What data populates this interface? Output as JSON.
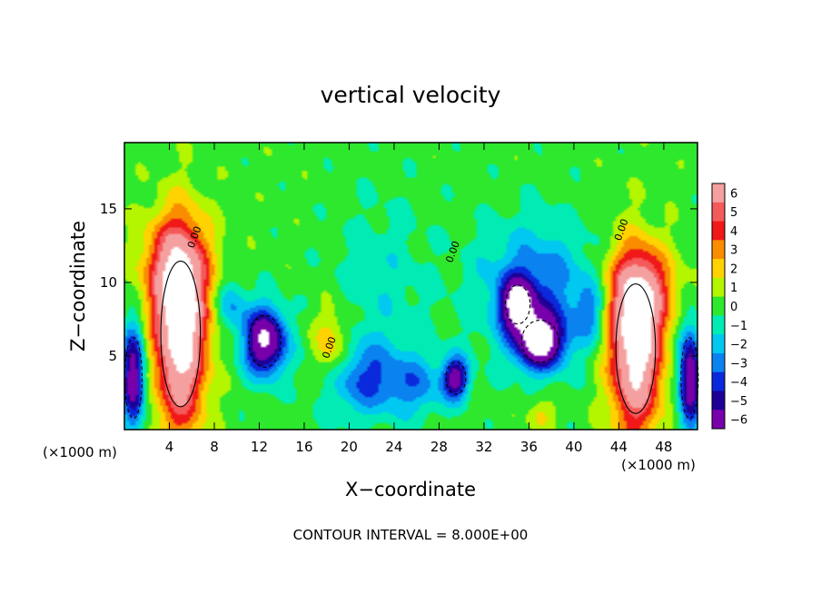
{
  "chart_data": {
    "type": "heatmap",
    "title": "vertical velocity",
    "xlabel": "X−coordinate",
    "ylabel": "Z−coordinate",
    "x_unit_left": "(×1000 m)",
    "x_unit_right": "(×1000 m)",
    "footer": "CONTOUR INTERVAL = 8.000E+00",
    "contour_label": "0.00",
    "xlim": [
      0,
      51
    ],
    "ylim": [
      0,
      19.5
    ],
    "x_ticks": [
      4,
      8,
      12,
      16,
      20,
      24,
      28,
      32,
      36,
      40,
      44,
      48
    ],
    "x_tick_labels": [
      "4",
      "8",
      "12",
      "16",
      "20",
      "24",
      "28",
      "32",
      "36",
      "40",
      "44",
      "48"
    ],
    "y_ticks": [
      5,
      10,
      15
    ],
    "y_tick_labels": [
      "5",
      "10",
      "15"
    ],
    "colorbar": {
      "range": [
        -6,
        6
      ],
      "levels": [
        6,
        5,
        4,
        3,
        2,
        1,
        0,
        -1,
        -2,
        -3,
        -4,
        -5,
        -6
      ],
      "tick_labels": [
        "6",
        "5",
        "4",
        "3",
        "2",
        "1",
        "0",
        "−1",
        "−2",
        "−3",
        "−4",
        "−5",
        "−6"
      ]
    },
    "features": [
      {
        "kind": "updraft",
        "x": 5,
        "z": 6.5,
        "sx": 1.6,
        "sz": 4.5,
        "amp": 9
      },
      {
        "kind": "updraft",
        "x": 45.5,
        "z": 5.5,
        "sx": 1.6,
        "sz": 4.0,
        "amp": 9
      },
      {
        "kind": "updraft",
        "x": 4.5,
        "z": 11,
        "sx": 2.2,
        "sz": 2.5,
        "amp": 4
      },
      {
        "kind": "updraft",
        "x": 46,
        "z": 9.5,
        "sx": 2.2,
        "sz": 2.0,
        "amp": 4
      },
      {
        "kind": "updraft",
        "x": 18.5,
        "z": 5.5,
        "sx": 1.2,
        "sz": 1.8,
        "amp": 3
      },
      {
        "kind": "updraft",
        "x": 37,
        "z": 1.0,
        "sx": 0.8,
        "sz": 0.8,
        "amp": 2
      },
      {
        "kind": "downdraft",
        "x": 12.5,
        "z": 6.0,
        "sx": 1.3,
        "sz": 1.6,
        "amp": -8
      },
      {
        "kind": "downdraft",
        "x": 37,
        "z": 6.0,
        "sx": 1.5,
        "sz": 1.3,
        "amp": -8
      },
      {
        "kind": "downdraft",
        "x": 35,
        "z": 8.5,
        "sx": 1.0,
        "sz": 1.2,
        "amp": -7
      },
      {
        "kind": "downdraft",
        "x": 36.5,
        "z": 9.5,
        "sx": 3.5,
        "sz": 3.0,
        "amp": -3.5
      },
      {
        "kind": "downdraft",
        "x": 29.5,
        "z": 3.5,
        "sx": 0.8,
        "sz": 1.0,
        "amp": -6
      },
      {
        "kind": "downdraft",
        "x": 0.8,
        "z": 3.5,
        "sx": 0.7,
        "sz": 2.5,
        "amp": -7
      },
      {
        "kind": "downdraft",
        "x": 50.3,
        "z": 3.5,
        "sx": 0.7,
        "sz": 2.5,
        "amp": -7
      },
      {
        "kind": "downdraft",
        "x": 21,
        "z": 3.5,
        "sx": 2.5,
        "sz": 1.8,
        "amp": -3.5
      },
      {
        "kind": "downdraft",
        "x": 26,
        "z": 3.0,
        "sx": 2.0,
        "sz": 1.5,
        "amp": -2.5
      },
      {
        "kind": "downdraft",
        "x": 9.5,
        "z": 8.5,
        "sx": 1.0,
        "sz": 1.2,
        "amp": -2.5
      },
      {
        "kind": "downdraft",
        "x": 41.5,
        "z": 8.0,
        "sx": 1.0,
        "sz": 1.5,
        "amp": -2.5
      },
      {
        "kind": "downdraft",
        "x": 23,
        "z": 10,
        "sx": 3.0,
        "sz": 4.0,
        "amp": -1.2
      }
    ],
    "grid": false,
    "legend_position": "right"
  }
}
